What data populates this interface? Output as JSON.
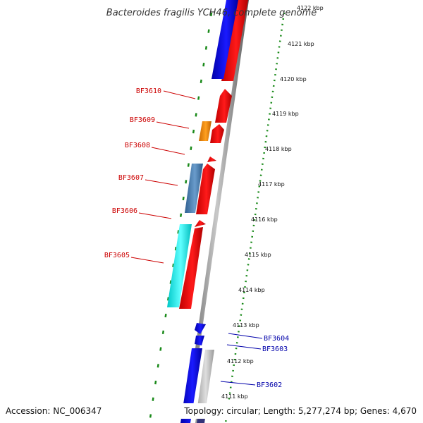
{
  "title": "Bacteroides fragilis YCH46, complete genome",
  "footer": {
    "accession": "Accession: NC_006347",
    "summary": "Topology: circular; Length: 5,277,274 bp; Genes: 4,670"
  },
  "colors": {
    "forward_label": "#cc0000",
    "reverse_label": "#0000aa",
    "tick": "#1a8a1a",
    "axis": "#888888",
    "forward_gene": "#ff0000",
    "reverse_gene": "#0000ee",
    "orange_gene": "#ff8c00",
    "steelblue_gene": "#4a7fb0",
    "cyan_gene": "#00f0f0",
    "gray_gene": "#c8c8c8"
  },
  "ticks": [
    {
      "kbp": 4122,
      "label": "4122 kbp"
    },
    {
      "kbp": 4121,
      "label": "4121 kbp"
    },
    {
      "kbp": 4120,
      "label": "4120 kbp"
    },
    {
      "kbp": 4119,
      "label": "4119 kbp"
    },
    {
      "kbp": 4118,
      "label": "4118 kbp"
    },
    {
      "kbp": 4117,
      "label": "4117 kbp"
    },
    {
      "kbp": 4116,
      "label": "4116 kbp"
    },
    {
      "kbp": 4115,
      "label": "4115 kbp"
    },
    {
      "kbp": 4114,
      "label": "4114 kbp"
    },
    {
      "kbp": 4113,
      "label": "4113 kbp"
    },
    {
      "kbp": 4112,
      "label": "4112 kbp"
    },
    {
      "kbp": 4111,
      "label": "4111 kbp"
    }
  ],
  "gene_labels": [
    {
      "name": "BF3610",
      "strand": "forward"
    },
    {
      "name": "BF3609",
      "strand": "forward"
    },
    {
      "name": "BF3608",
      "strand": "forward"
    },
    {
      "name": "BF3607",
      "strand": "forward"
    },
    {
      "name": "BF3606",
      "strand": "forward"
    },
    {
      "name": "BF3605",
      "strand": "forward"
    },
    {
      "name": "BF3604",
      "strand": "reverse"
    },
    {
      "name": "BF3603",
      "strand": "reverse"
    },
    {
      "name": "BF3602",
      "strand": "reverse"
    }
  ]
}
